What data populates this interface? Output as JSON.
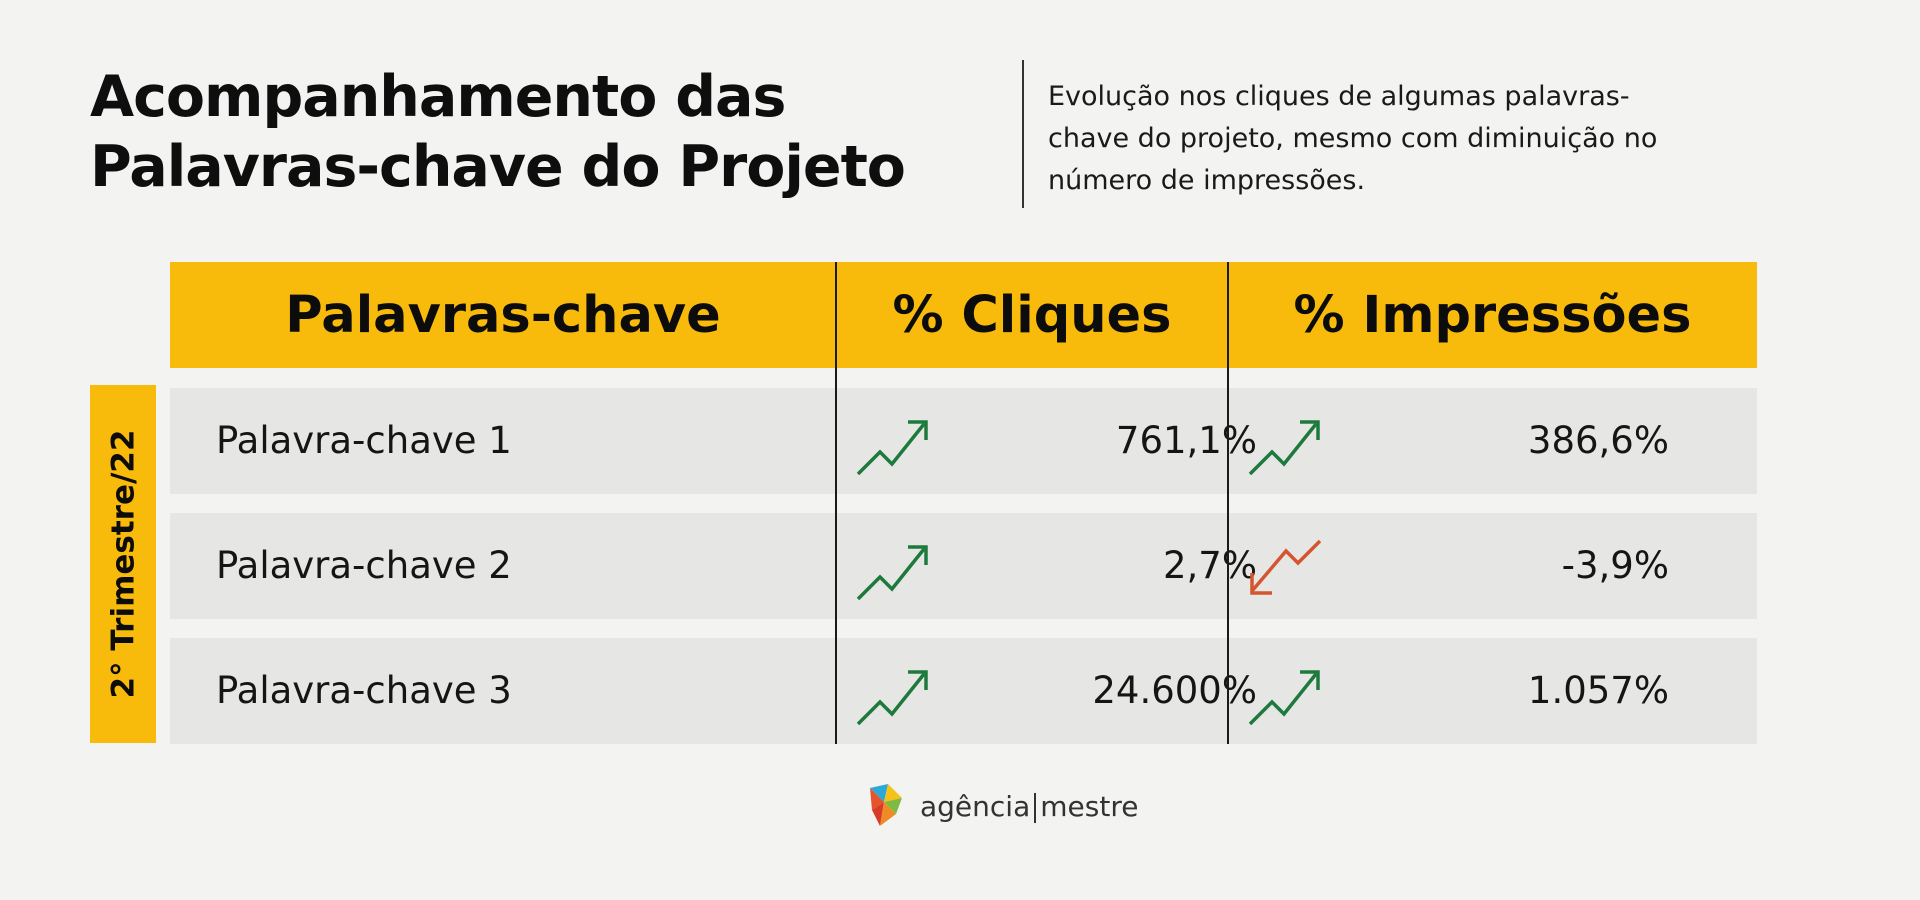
{
  "title": {
    "line1": "Acompanhamento das",
    "line2": "Palavras-chave do Projeto"
  },
  "subtitle": {
    "line1": "Evolução nos cliques de algumas palavras-",
    "line2": "chave do projeto, mesmo com diminuição no",
    "line3": "número de impressões."
  },
  "table": {
    "headers": [
      "Palavras-chave",
      "% Cliques",
      "% Impressões"
    ],
    "side_label": "2° Trimestre/22",
    "rows": [
      {
        "keyword": "Palavra-chave 1",
        "clicks": "761,1%",
        "clicks_trend": "up",
        "impressions": "386,6%",
        "impressions_trend": "up"
      },
      {
        "keyword": "Palavra-chave 2",
        "clicks": "2,7%",
        "clicks_trend": "up",
        "impressions": "-3,9%",
        "impressions_trend": "down"
      },
      {
        "keyword": "Palavra-chave 3",
        "clicks": "24.600%",
        "clicks_trend": "up",
        "impressions": "1.057%",
        "impressions_trend": "up"
      }
    ]
  },
  "colors": {
    "accent": "#f9bb0b",
    "row_bg": "#e6e7e5",
    "trend_up": "#1e7a3c",
    "trend_down": "#d4552f"
  },
  "icons": {
    "up": "trend-up-arrow-icon",
    "down": "trend-down-arrow-icon"
  },
  "logo": {
    "part1": "agência",
    "part2": "mestre"
  }
}
